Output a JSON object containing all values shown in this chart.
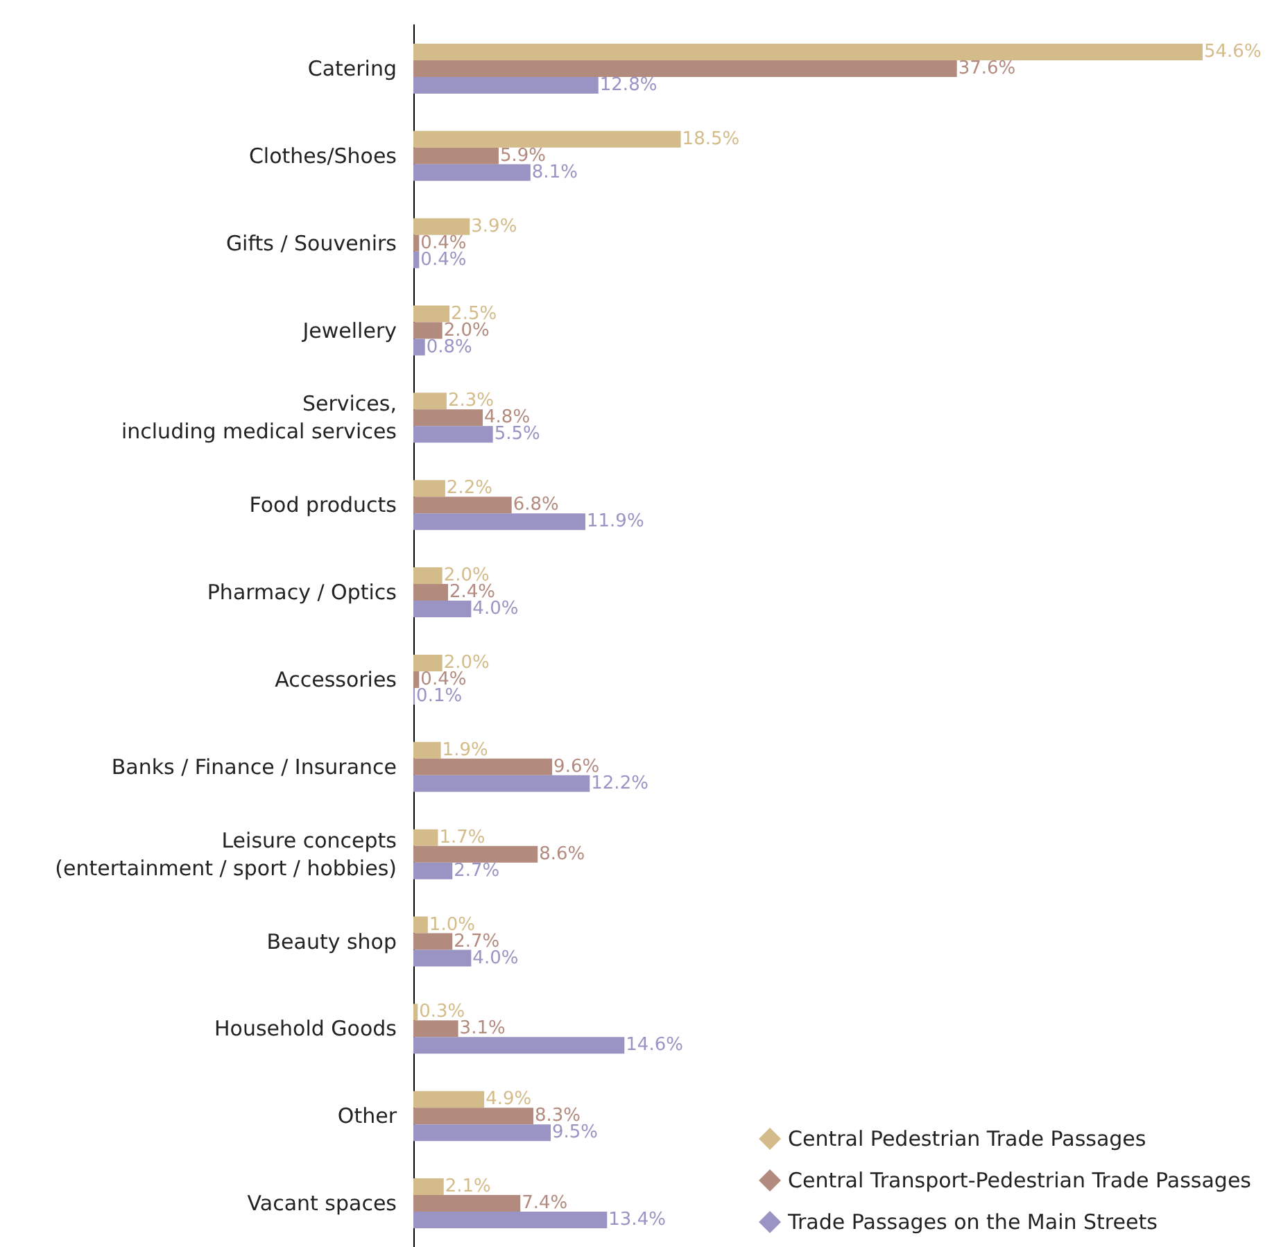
{
  "chart_data": {
    "type": "bar",
    "orientation": "horizontal",
    "legend": "bottom right",
    "grid": false,
    "categories": [
      "Catering",
      "Clothes/Shoes",
      "Gifts / Souvenirs",
      "Jewellery",
      "Services,\nincluding medical services",
      "Food products",
      "Pharmacy / Optics",
      "Accessories",
      "Banks / Finance / Insurance",
      "Leisure concepts\n(entertainment / sport / hobbies)",
      "Beauty shop",
      "Household Goods",
      "Other",
      "Vacant spaces"
    ],
    "series": [
      {
        "name": "Central Pedestrian Trade Passages",
        "color": "#d4bb8a",
        "values": [
          54.6,
          18.5,
          3.9,
          2.5,
          2.3,
          2.2,
          2.0,
          2.0,
          1.9,
          1.7,
          1.0,
          0.3,
          4.9,
          2.1
        ],
        "value_labels": [
          "54.6%",
          "18.5%",
          "3.9%",
          "2.5%",
          "2.3%",
          "2.2%",
          "2.0%",
          "2.0%",
          "1.9%",
          "1.7%",
          "1.0%",
          "0.3%",
          "4.9%",
          "2.1%"
        ]
      },
      {
        "name": "Central Transport-Pedestrian Trade Passages",
        "color": "#b38a7e",
        "values": [
          37.6,
          5.9,
          0.4,
          2.0,
          4.8,
          6.8,
          2.4,
          0.4,
          9.6,
          8.6,
          2.7,
          3.1,
          8.3,
          7.4
        ],
        "value_labels": [
          "37.6%",
          "5.9%",
          "0.4%",
          "2.0%",
          "4.8%",
          "6.8%",
          "2.4%",
          "0.4%",
          "9.6%",
          "8.6%",
          "2.7%",
          "3.1%",
          "8.3%",
          "7.4%"
        ]
      },
      {
        "name": "Trade Passages on the Main Streets",
        "color": "#9a94c4",
        "values": [
          12.8,
          8.1,
          0.4,
          0.8,
          5.5,
          11.9,
          4.0,
          0.1,
          12.2,
          2.7,
          4.0,
          14.6,
          9.5,
          13.4
        ],
        "value_labels": [
          "12.8%",
          "8.1%",
          "0.4%",
          "0.8%",
          "5.5%",
          "11.9%",
          "4.0%",
          "0.1%",
          "12.2%",
          "2.7%",
          "4.0%",
          "14.6%",
          "9.5%",
          "13.4%"
        ]
      }
    ]
  }
}
